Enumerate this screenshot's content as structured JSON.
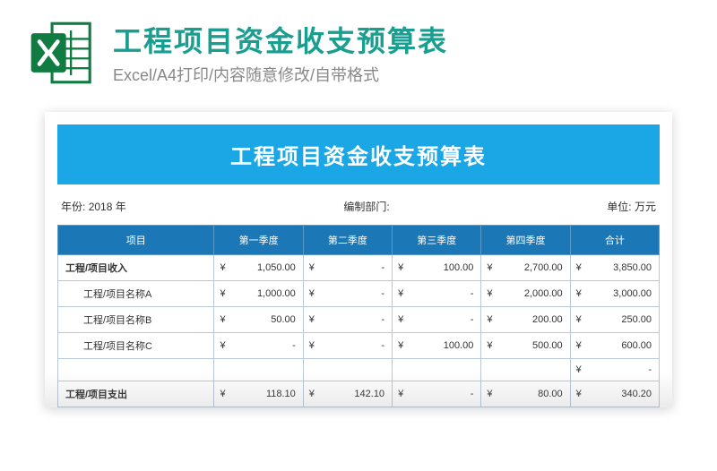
{
  "header": {
    "title": "工程项目资金收支预算表",
    "subtitle": "Excel/A4打印/内容随意修改/自带格式",
    "title_color": "#1a9e8f",
    "subtitle_color": "#888888",
    "icon_green": "#107c41",
    "icon_dark": "#0a5c30"
  },
  "banner": {
    "text": "工程项目资金收支预算表",
    "bg": "#1ba7e5",
    "fg": "#ffffff"
  },
  "meta": {
    "year_label": "年份:",
    "year_value": "2018 年",
    "dept_label": "编制部门:",
    "dept_value": "",
    "unit_label": "单位:",
    "unit_value": "万元"
  },
  "table": {
    "header_bg": "#1b77b5",
    "header_fg": "#ffffff",
    "border_color": "#b8c8d8",
    "currency_symbol": "¥",
    "columns": {
      "item": "项目",
      "q1": "第一季度",
      "q2": "第二季度",
      "q3": "第三季度",
      "q4": "第四季度",
      "total": "合计"
    },
    "rows": [
      {
        "type": "section",
        "label": "工程/项目收入",
        "q1": "1,050.00",
        "q2": "-",
        "q3": "100.00",
        "q4": "2,700.00",
        "total": "3,850.00"
      },
      {
        "type": "sub",
        "label": "工程/项目名称A",
        "q1": "1,000.00",
        "q2": "-",
        "q3": "-",
        "q4": "2,000.00",
        "total": "3,000.00"
      },
      {
        "type": "sub",
        "label": "工程/项目名称B",
        "q1": "50.00",
        "q2": "-",
        "q3": "-",
        "q4": "200.00",
        "total": "250.00"
      },
      {
        "type": "sub",
        "label": "工程/项目名称C",
        "q1": "-",
        "q2": "-",
        "q3": "100.00",
        "q4": "500.00",
        "total": "600.00"
      },
      {
        "type": "sub",
        "label": "",
        "q1": "",
        "q2": "",
        "q3": "",
        "q4": "",
        "total": "-"
      },
      {
        "type": "section",
        "label": "工程/项目支出",
        "q1": "118.10",
        "q2": "142.10",
        "q3": "-",
        "q4": "80.00",
        "total": "340.20"
      }
    ]
  }
}
